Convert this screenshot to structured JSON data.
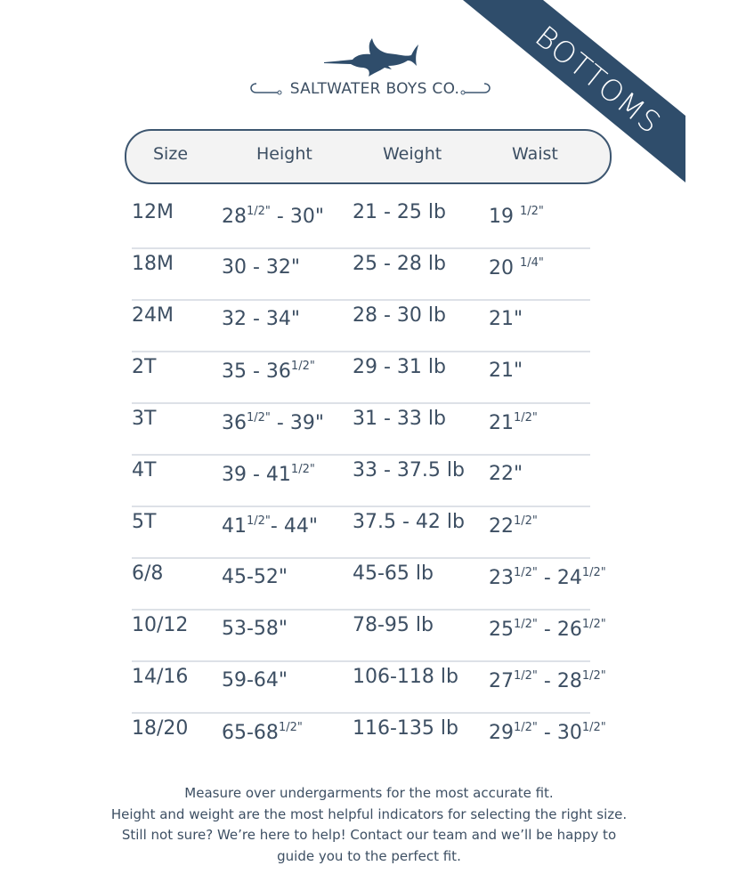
{
  "brand": {
    "name": "SALTWATER BOYS CO.",
    "logo_icon": "marlin-icon",
    "color": "#2f4d6b"
  },
  "banner": {
    "label": "BOTTOMS",
    "color": "#2f4d6b"
  },
  "table": {
    "headers": [
      "Size",
      "Height",
      "Weight",
      "Waist"
    ],
    "rows": [
      {
        "size": "12M",
        "height": [
          {
            "t": "28"
          },
          {
            "t": "1/2\"",
            "sup": true
          },
          {
            "t": " - 30\""
          }
        ],
        "weight": "21 - 25 lb",
        "waist": [
          {
            "t": "19 "
          },
          {
            "t": "1/2\"",
            "sup": true
          }
        ]
      },
      {
        "size": "18M",
        "height": [
          {
            "t": "30 - 32\""
          }
        ],
        "weight": "25 - 28 lb",
        "waist": [
          {
            "t": "20 "
          },
          {
            "t": "1/4\"",
            "sup": true
          }
        ]
      },
      {
        "size": "24M",
        "height": [
          {
            "t": "32 - 34\""
          }
        ],
        "weight": "28 - 30 lb",
        "waist": [
          {
            "t": "21\""
          }
        ]
      },
      {
        "size": "2T",
        "height": [
          {
            "t": "35 - 36"
          },
          {
            "t": "1/2\"",
            "sup": true
          }
        ],
        "weight": "29 - 31 lb",
        "waist": [
          {
            "t": "21\""
          }
        ]
      },
      {
        "size": "3T",
        "height": [
          {
            "t": "36"
          },
          {
            "t": "1/2\"",
            "sup": true
          },
          {
            "t": " - 39\""
          }
        ],
        "weight": "31 - 33 lb",
        "waist": [
          {
            "t": "21"
          },
          {
            "t": "1/2\"",
            "sup": true
          }
        ]
      },
      {
        "size": "4T",
        "height": [
          {
            "t": "39 - 41"
          },
          {
            "t": "1/2\"",
            "sup": true
          }
        ],
        "weight": "33 - 37.5 lb",
        "waist": [
          {
            "t": "22\""
          }
        ]
      },
      {
        "size": "5T",
        "height": [
          {
            "t": "41"
          },
          {
            "t": "1/2\"",
            "sup": true
          },
          {
            "t": "- 44\""
          }
        ],
        "weight": "37.5 - 42 lb",
        "waist": [
          {
            "t": "22"
          },
          {
            "t": "1/2\"",
            "sup": true
          }
        ]
      },
      {
        "size": "6/8",
        "height": [
          {
            "t": "45-52\""
          }
        ],
        "weight": "45-65 lb",
        "waist": [
          {
            "t": "23"
          },
          {
            "t": "1/2\"",
            "sup": true
          },
          {
            "t": " - 24"
          },
          {
            "t": "1/2\"",
            "sup": true
          }
        ]
      },
      {
        "size": "10/12",
        "height": [
          {
            "t": "53-58\""
          }
        ],
        "weight": "78-95 lb",
        "waist": [
          {
            "t": "25"
          },
          {
            "t": "1/2\"",
            "sup": true
          },
          {
            "t": " - 26"
          },
          {
            "t": "1/2\"",
            "sup": true
          }
        ]
      },
      {
        "size": "14/16",
        "height": [
          {
            "t": "59-64\""
          }
        ],
        "weight": "106-118 lb",
        "waist": [
          {
            "t": "27"
          },
          {
            "t": "1/2\"",
            "sup": true
          },
          {
            "t": " - 28"
          },
          {
            "t": "1/2\"",
            "sup": true
          }
        ]
      },
      {
        "size": "18/20",
        "height": [
          {
            "t": "65-68"
          },
          {
            "t": "1/2\"",
            "sup": true
          }
        ],
        "weight": "116-135 lb",
        "waist": [
          {
            "t": "29"
          },
          {
            "t": "1/2\"",
            "sup": true
          },
          {
            "t": " - 30"
          },
          {
            "t": "1/2\"",
            "sup": true
          }
        ]
      }
    ]
  },
  "footer": {
    "lines": [
      "Measure over undergarments for the most accurate fit.",
      "Height and weight are the most helpful indicators for selecting the right size.",
      "Still not sure? We’re here to help! Contact our team and we’ll be happy to",
      "guide you to the perfect fit."
    ]
  }
}
